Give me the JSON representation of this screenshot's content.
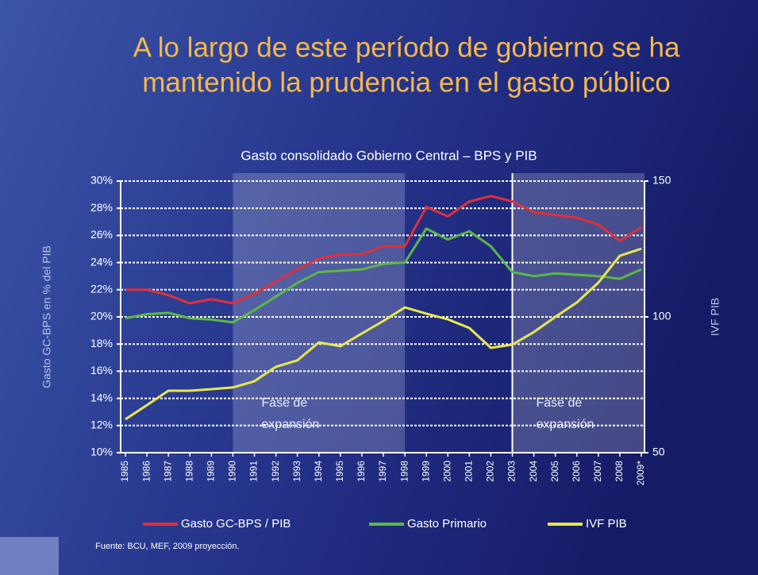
{
  "slide_title": [
    "A lo largo de este período de gobierno se ha",
    "mantenido la prudencia en el gasto público"
  ],
  "chart_data": {
    "type": "line",
    "title": "Gasto consolidado Gobierno Central – BPS y PIB",
    "categories": [
      "1985",
      "1986",
      "1987",
      "1988",
      "1989",
      "1990",
      "1991",
      "1992",
      "1993",
      "1994",
      "1995",
      "1996",
      "1997",
      "1998",
      "1999",
      "2000",
      "2001",
      "2002",
      "2003",
      "2004",
      "2005",
      "2006",
      "2007",
      "2008",
      "2009*"
    ],
    "series": [
      {
        "name": "Gasto GC-BPS / PIB",
        "color": "#e0303a",
        "values": [
          22.0,
          22.0,
          21.6,
          21.0,
          21.3,
          21.0,
          21.7,
          22.6,
          23.5,
          24.3,
          24.6,
          24.6,
          25.2,
          25.2,
          28.1,
          27.4,
          28.5,
          28.9,
          28.5,
          27.7,
          27.5,
          27.3,
          26.8,
          25.6,
          26.6
        ]
      },
      {
        "name": "Gasto Primario",
        "color": "#5cb845",
        "values": [
          19.9,
          20.2,
          20.3,
          19.9,
          19.8,
          19.6,
          20.5,
          21.5,
          22.5,
          23.3,
          23.4,
          23.5,
          23.9,
          24.0,
          26.5,
          25.7,
          26.3,
          25.2,
          23.3,
          23.0,
          23.2,
          23.1,
          23.0,
          22.8,
          23.5
        ]
      },
      {
        "name": "IVF PIB",
        "color": "#e8e84a",
        "axis": "y2",
        "values": [
          62.3,
          67.5,
          72.8,
          72.8,
          73.4,
          74.0,
          76.3,
          81.6,
          84.0,
          90.6,
          89.2,
          93.9,
          98.5,
          103.5,
          101.2,
          99.1,
          95.9,
          88.6,
          89.8,
          94.4,
          100.0,
          105.3,
          112.6,
          122.5,
          125.1
        ]
      }
    ],
    "ylim": [
      10,
      30
    ],
    "yticks": [
      {
        "value": 10,
        "label": "10%"
      },
      {
        "value": 12,
        "label": "12%"
      },
      {
        "value": 14,
        "label": "14%"
      },
      {
        "value": 16,
        "label": "16%"
      },
      {
        "value": 18,
        "label": "18%"
      },
      {
        "value": 20,
        "label": "20%"
      },
      {
        "value": 22,
        "label": "22%"
      },
      {
        "value": 24,
        "label": "24%"
      },
      {
        "value": 26,
        "label": "26%"
      },
      {
        "value": 28,
        "label": "28%"
      },
      {
        "value": 30,
        "label": "30%"
      }
    ],
    "y2lim": [
      50,
      150
    ],
    "y2ticks": [
      50,
      100,
      150
    ],
    "ylabel": "Gasto GC-BPS en % del PIB",
    "y2label": "IVF PIB",
    "grid": true,
    "legend": "bottom",
    "spans": [
      {
        "label": [
          "Fase de",
          "expansión"
        ],
        "start": "1990",
        "end": "1998"
      },
      {
        "label": [
          "Fase de",
          "expansión"
        ],
        "start": "2003",
        "end": "2009*"
      }
    ],
    "source": "Fuente:  BCU, MEF,  2009 proyección."
  }
}
